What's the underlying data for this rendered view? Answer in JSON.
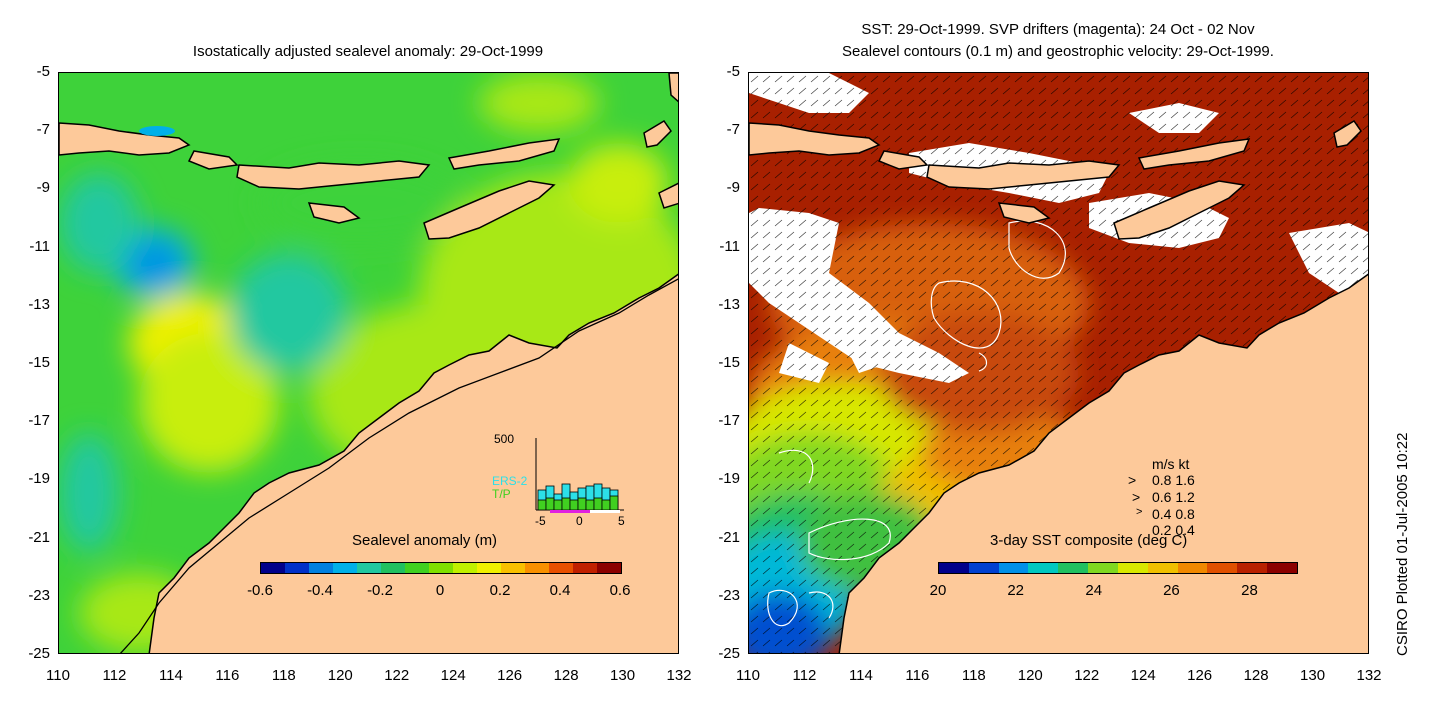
{
  "left_panel": {
    "title": "Isostatically adjusted sealevel anomaly: 29-Oct-1999",
    "colorbar": {
      "title": "Sealevel anomaly (m)",
      "ticks": [
        "-0.6",
        "-0.4",
        "-0.2",
        "0",
        "0.2",
        "0.4",
        "0.6"
      ],
      "colors": [
        "#00008b",
        "#0030c8",
        "#0080e0",
        "#00b0e8",
        "#20c8a0",
        "#20c060",
        "#40d020",
        "#80e000",
        "#c0f000",
        "#f0f000",
        "#f8c000",
        "#f89000",
        "#e85000",
        "#c02000",
        "#8b0000"
      ]
    },
    "inset": {
      "y_max_label": "500",
      "legend": [
        "ERS-2",
        "T/P"
      ],
      "x_ticks": [
        "-5",
        "0",
        "5"
      ]
    }
  },
  "right_panel": {
    "title_line1": "SST: 29-Oct-1999. SVP drifters (magenta): 24 Oct - 02 Nov",
    "title_line2": "Sealevel contours (0.1 m) and geostrophic velocity: 29-Oct-1999.",
    "colorbar": {
      "title": "3-day SST composite (deg C)",
      "ticks": [
        "20",
        "22",
        "24",
        "26",
        "28"
      ],
      "colors": [
        "#00008b",
        "#0040d0",
        "#0090e8",
        "#00c8c0",
        "#20c060",
        "#80d820",
        "#d8e800",
        "#f0c000",
        "#f08800",
        "#e05000",
        "#b82000",
        "#8b0000"
      ]
    },
    "velocity_legend": {
      "header": "m/s  kt",
      "rows": [
        "0.8  1.6",
        "0.6  1.2",
        "0.4  0.8",
        "0.2  0.4"
      ]
    }
  },
  "axes": {
    "y_ticks": [
      "-5",
      "-7",
      "-9",
      "-11",
      "-13",
      "-15",
      "-17",
      "-19",
      "-21",
      "-23",
      "-25"
    ],
    "x_ticks": [
      "110",
      "112",
      "114",
      "116",
      "118",
      "120",
      "122",
      "124",
      "126",
      "128",
      "130",
      "132"
    ]
  },
  "credit": "CSIRO Plotted 01-Jul-2005 10:22",
  "colors": {
    "land": "#fdc99a",
    "sea_green": "#3ed23a",
    "sea_yellow_green": "#a8e818",
    "sst_dark_red": "#a82000",
    "sst_orange": "#d86010",
    "cloud": "#ffffff"
  }
}
